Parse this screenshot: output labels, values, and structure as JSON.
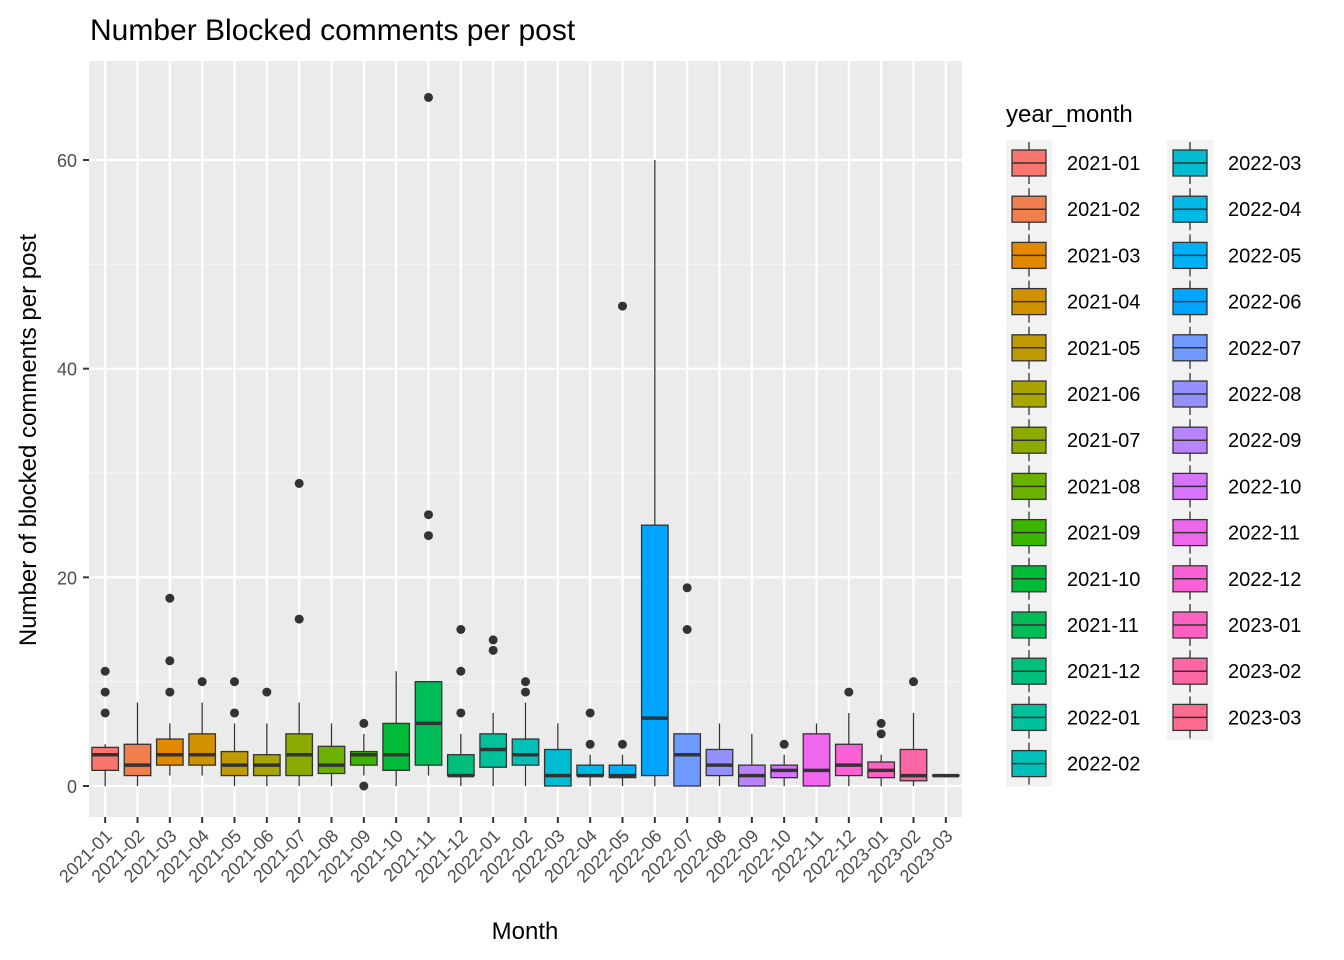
{
  "chart_data": {
    "type": "boxplot",
    "title": "Number Blocked comments  per post",
    "xlabel": "Month",
    "ylabel": "Number of blocked comments per post",
    "ylim": [
      -3,
      69
    ],
    "yticks": [
      0,
      20,
      40,
      60
    ],
    "grid": true,
    "legend": {
      "title": "year_month",
      "placement": "right",
      "columns": 2
    },
    "categories": [
      "2021-01",
      "2021-02",
      "2021-03",
      "2021-04",
      "2021-05",
      "2021-06",
      "2021-07",
      "2021-08",
      "2021-09",
      "2021-10",
      "2021-11",
      "2021-12",
      "2022-01",
      "2022-02",
      "2022-03",
      "2022-04",
      "2022-05",
      "2022-06",
      "2022-07",
      "2022-08",
      "2022-09",
      "2022-10",
      "2022-11",
      "2022-12",
      "2023-01",
      "2023-02",
      "2023-03"
    ],
    "colors": [
      "#F8766D",
      "#F07F4C",
      "#E38900",
      "#D29200",
      "#BF9A00",
      "#A8A400",
      "#8BAB00",
      "#6BB100",
      "#39B600",
      "#00BA38",
      "#00BC59",
      "#00BF7D",
      "#00C19C",
      "#00C0B8",
      "#00BCD1",
      "#00B8E5",
      "#00B0F6",
      "#00A5FF",
      "#6F9AFF",
      "#9590FF",
      "#B983FF",
      "#D774FD",
      "#EE67EC",
      "#FB61D7",
      "#FF61C3",
      "#FF67A4",
      "#FF6C90"
    ],
    "series": [
      {
        "name": "2021-01",
        "min": 0,
        "q1": 1.5,
        "median": 3,
        "q3": 3.7,
        "max": 4,
        "outliers": [
          7,
          9,
          11
        ]
      },
      {
        "name": "2021-02",
        "min": 0,
        "q1": 1,
        "median": 2,
        "q3": 4,
        "max": 8,
        "outliers": []
      },
      {
        "name": "2021-03",
        "min": 1,
        "q1": 2,
        "median": 3,
        "q3": 4.5,
        "max": 6,
        "outliers": [
          9,
          12,
          18
        ]
      },
      {
        "name": "2021-04",
        "min": 1,
        "q1": 2,
        "median": 3,
        "q3": 5,
        "max": 8,
        "outliers": [
          10
        ]
      },
      {
        "name": "2021-05",
        "min": 0,
        "q1": 1,
        "median": 2,
        "q3": 3.3,
        "max": 6,
        "outliers": [
          7,
          10
        ]
      },
      {
        "name": "2021-06",
        "min": 0,
        "q1": 1,
        "median": 2,
        "q3": 3,
        "max": 6,
        "outliers": [
          9
        ]
      },
      {
        "name": "2021-07",
        "min": 0,
        "q1": 1,
        "median": 3,
        "q3": 5,
        "max": 8,
        "outliers": [
          16,
          29
        ]
      },
      {
        "name": "2021-08",
        "min": 0,
        "q1": 1.2,
        "median": 2,
        "q3": 3.8,
        "max": 6,
        "outliers": []
      },
      {
        "name": "2021-09",
        "min": 1,
        "q1": 2,
        "median": 3,
        "q3": 3.3,
        "max": 5,
        "outliers": [
          0,
          6
        ]
      },
      {
        "name": "2021-10",
        "min": 0,
        "q1": 1.5,
        "median": 3,
        "q3": 6,
        "max": 11,
        "outliers": []
      },
      {
        "name": "2021-11",
        "min": 1,
        "q1": 2,
        "median": 6,
        "q3": 10,
        "max": 10,
        "outliers": [
          24,
          26,
          66
        ]
      },
      {
        "name": "2021-12",
        "min": 0,
        "q1": 1,
        "median": 1,
        "q3": 3,
        "max": 5,
        "outliers": [
          7,
          11,
          15
        ]
      },
      {
        "name": "2022-01",
        "min": 0,
        "q1": 1.8,
        "median": 3.5,
        "q3": 5,
        "max": 7,
        "outliers": [
          13,
          14
        ]
      },
      {
        "name": "2022-02",
        "min": 0,
        "q1": 2,
        "median": 3,
        "q3": 4.5,
        "max": 8,
        "outliers": [
          9,
          10
        ]
      },
      {
        "name": "2022-03",
        "min": 0,
        "q1": 0,
        "median": 1,
        "q3": 3.5,
        "max": 6,
        "outliers": []
      },
      {
        "name": "2022-04",
        "min": 0,
        "q1": 1,
        "median": 1,
        "q3": 2,
        "max": 3,
        "outliers": [
          4,
          7
        ]
      },
      {
        "name": "2022-05",
        "min": 0,
        "q1": 0.8,
        "median": 1,
        "q3": 2,
        "max": 3,
        "outliers": [
          4,
          46
        ]
      },
      {
        "name": "2022-06",
        "min": 0,
        "q1": 1,
        "median": 6.5,
        "q3": 25,
        "max": 60,
        "outliers": []
      },
      {
        "name": "2022-07",
        "min": 0,
        "q1": 0,
        "median": 3,
        "q3": 5,
        "max": 5,
        "outliers": [
          15,
          19
        ]
      },
      {
        "name": "2022-08",
        "min": 0,
        "q1": 1,
        "median": 2,
        "q3": 3.5,
        "max": 6,
        "outliers": []
      },
      {
        "name": "2022-09",
        "min": 0,
        "q1": 0,
        "median": 1,
        "q3": 2,
        "max": 5,
        "outliers": []
      },
      {
        "name": "2022-10",
        "min": 0,
        "q1": 0.8,
        "median": 1.5,
        "q3": 2,
        "max": 3,
        "outliers": [
          4
        ]
      },
      {
        "name": "2022-11",
        "min": 0,
        "q1": 0,
        "median": 1.5,
        "q3": 5,
        "max": 6,
        "outliers": []
      },
      {
        "name": "2022-12",
        "min": 0,
        "q1": 1,
        "median": 2,
        "q3": 4,
        "max": 7,
        "outliers": [
          9
        ]
      },
      {
        "name": "2023-01",
        "min": 0,
        "q1": 0.8,
        "median": 1.5,
        "q3": 2.3,
        "max": 3,
        "outliers": [
          5,
          6
        ]
      },
      {
        "name": "2023-02",
        "min": 0,
        "q1": 0.5,
        "median": 1,
        "q3": 3.5,
        "max": 7,
        "outliers": [
          10
        ]
      },
      {
        "name": "2023-03",
        "min": 1,
        "q1": 1,
        "median": 1,
        "q3": 1,
        "max": 1,
        "outliers": []
      }
    ]
  }
}
